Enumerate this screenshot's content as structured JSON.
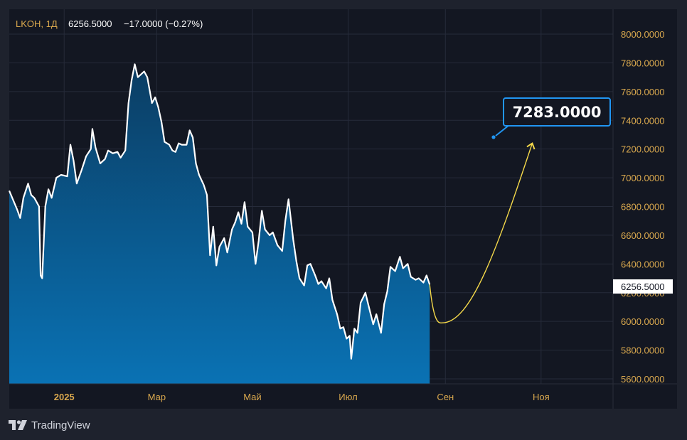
{
  "header": {
    "symbol": "LKOH, 1Д",
    "last": "6256.5000",
    "change": "−17.0000 (−0.27%)"
  },
  "price_tag": "6256.5000",
  "callout": "7283.0000",
  "branding": {
    "name": "TradingView"
  },
  "colors": {
    "background": "#131722",
    "frame": "#1e222d",
    "line": "#ffffff",
    "area_top": "#0b3d63",
    "area_bottom": "#0a72b4",
    "forecast": "#f5d94a",
    "callout_border": "#2196f3",
    "axis_text": "#d9a84e",
    "grid": "#262b3a"
  },
  "chart_data": {
    "type": "area",
    "title": "LKOH, 1Д",
    "ylim": [
      5560,
      8120
    ],
    "y_ticks": [
      8000,
      7800,
      7600,
      7400,
      7200,
      7000,
      6800,
      6600,
      6400,
      6200,
      6000,
      5800,
      5600
    ],
    "x_ticks": [
      {
        "label": "2025",
        "date": "2025-01-01",
        "bold": true
      },
      {
        "label": "Мар",
        "date": "2025-03-01"
      },
      {
        "label": "Май",
        "date": "2025-05-01"
      },
      {
        "label": "Июл",
        "date": "2025-07-01"
      },
      {
        "label": "Сен",
        "date": "2025-09-01"
      },
      {
        "label": "Ноя",
        "date": "2025-11-01"
      }
    ],
    "x_range": [
      "2024-11-27",
      "2026-01-04"
    ],
    "grid": true,
    "series": [
      {
        "values": [
          [
            "2024-11-27",
            6910
          ],
          [
            "2024-12-02",
            6780
          ],
          [
            "2024-12-04",
            6720
          ],
          [
            "2024-12-06",
            6860
          ],
          [
            "2024-12-09",
            6960
          ],
          [
            "2024-12-11",
            6880
          ],
          [
            "2024-12-13",
            6860
          ],
          [
            "2024-12-16",
            6800
          ],
          [
            "2024-12-17",
            6320
          ],
          [
            "2024-12-18",
            6300
          ],
          [
            "2024-12-20",
            6800
          ],
          [
            "2024-12-22",
            6920
          ],
          [
            "2024-12-24",
            6860
          ],
          [
            "2024-12-27",
            7000
          ],
          [
            "2024-12-30",
            7020
          ],
          [
            "2025-01-03",
            7010
          ],
          [
            "2025-01-05",
            7230
          ],
          [
            "2025-01-07",
            7120
          ],
          [
            "2025-01-09",
            6960
          ],
          [
            "2025-01-12",
            7050
          ],
          [
            "2025-01-15",
            7150
          ],
          [
            "2025-01-18",
            7200
          ],
          [
            "2025-01-19",
            7340
          ],
          [
            "2025-01-21",
            7210
          ],
          [
            "2025-01-24",
            7100
          ],
          [
            "2025-01-27",
            7130
          ],
          [
            "2025-01-29",
            7190
          ],
          [
            "2025-02-01",
            7170
          ],
          [
            "2025-02-04",
            7180
          ],
          [
            "2025-02-06",
            7140
          ],
          [
            "2025-02-09",
            7190
          ],
          [
            "2025-02-11",
            7520
          ],
          [
            "2025-02-13",
            7680
          ],
          [
            "2025-02-15",
            7790
          ],
          [
            "2025-02-17",
            7700
          ],
          [
            "2025-02-19",
            7720
          ],
          [
            "2025-02-21",
            7740
          ],
          [
            "2025-02-23",
            7700
          ],
          [
            "2025-02-26",
            7520
          ],
          [
            "2025-02-28",
            7560
          ],
          [
            "2025-03-02",
            7490
          ],
          [
            "2025-03-04",
            7390
          ],
          [
            "2025-03-06",
            7250
          ],
          [
            "2025-03-09",
            7230
          ],
          [
            "2025-03-11",
            7190
          ],
          [
            "2025-03-13",
            7180
          ],
          [
            "2025-03-15",
            7240
          ],
          [
            "2025-03-17",
            7230
          ],
          [
            "2025-03-20",
            7230
          ],
          [
            "2025-03-22",
            7330
          ],
          [
            "2025-03-24",
            7280
          ],
          [
            "2025-03-26",
            7100
          ],
          [
            "2025-03-28",
            7020
          ],
          [
            "2025-03-31",
            6950
          ],
          [
            "2025-04-02",
            6880
          ],
          [
            "2025-04-04",
            6460
          ],
          [
            "2025-04-06",
            6660
          ],
          [
            "2025-04-08",
            6390
          ],
          [
            "2025-04-10",
            6520
          ],
          [
            "2025-04-13",
            6580
          ],
          [
            "2025-04-15",
            6480
          ],
          [
            "2025-04-18",
            6640
          ],
          [
            "2025-04-20",
            6690
          ],
          [
            "2025-04-22",
            6760
          ],
          [
            "2025-04-24",
            6680
          ],
          [
            "2025-04-26",
            6830
          ],
          [
            "2025-04-28",
            6660
          ],
          [
            "2025-05-01",
            6620
          ],
          [
            "2025-05-03",
            6400
          ],
          [
            "2025-05-05",
            6560
          ],
          [
            "2025-05-07",
            6770
          ],
          [
            "2025-05-09",
            6640
          ],
          [
            "2025-05-12",
            6600
          ],
          [
            "2025-05-14",
            6620
          ],
          [
            "2025-05-17",
            6530
          ],
          [
            "2025-05-20",
            6490
          ],
          [
            "2025-05-22",
            6700
          ],
          [
            "2025-05-24",
            6850
          ],
          [
            "2025-05-27",
            6570
          ],
          [
            "2025-05-29",
            6420
          ],
          [
            "2025-05-31",
            6300
          ],
          [
            "2025-06-03",
            6250
          ],
          [
            "2025-06-05",
            6390
          ],
          [
            "2025-06-07",
            6400
          ],
          [
            "2025-06-10",
            6320
          ],
          [
            "2025-06-12",
            6260
          ],
          [
            "2025-06-14",
            6280
          ],
          [
            "2025-06-17",
            6230
          ],
          [
            "2025-06-19",
            6300
          ],
          [
            "2025-06-21",
            6150
          ],
          [
            "2025-06-24",
            6050
          ],
          [
            "2025-06-26",
            5950
          ],
          [
            "2025-06-28",
            5960
          ],
          [
            "2025-06-30",
            5880
          ],
          [
            "2025-07-02",
            5900
          ],
          [
            "2025-07-03",
            5740
          ],
          [
            "2025-07-05",
            5950
          ],
          [
            "2025-07-07",
            5920
          ],
          [
            "2025-07-09",
            6130
          ],
          [
            "2025-07-12",
            6200
          ],
          [
            "2025-07-14",
            6110
          ],
          [
            "2025-07-17",
            5980
          ],
          [
            "2025-07-19",
            6050
          ],
          [
            "2025-07-22",
            5920
          ],
          [
            "2025-07-24",
            6120
          ],
          [
            "2025-07-26",
            6210
          ],
          [
            "2025-07-28",
            6380
          ],
          [
            "2025-07-31",
            6350
          ],
          [
            "2025-08-03",
            6450
          ],
          [
            "2025-08-05",
            6370
          ],
          [
            "2025-08-08",
            6400
          ],
          [
            "2025-08-10",
            6310
          ],
          [
            "2025-08-13",
            6290
          ],
          [
            "2025-08-15",
            6300
          ],
          [
            "2025-08-18",
            6270
          ],
          [
            "2025-08-20",
            6320
          ],
          [
            "2025-08-22",
            6256.5
          ]
        ]
      }
    ],
    "projection": {
      "from": [
        "2025-08-22",
        6256.5
      ],
      "low": [
        "2025-08-30",
        5990
      ],
      "to": [
        "2025-10-28",
        7283
      ]
    }
  }
}
